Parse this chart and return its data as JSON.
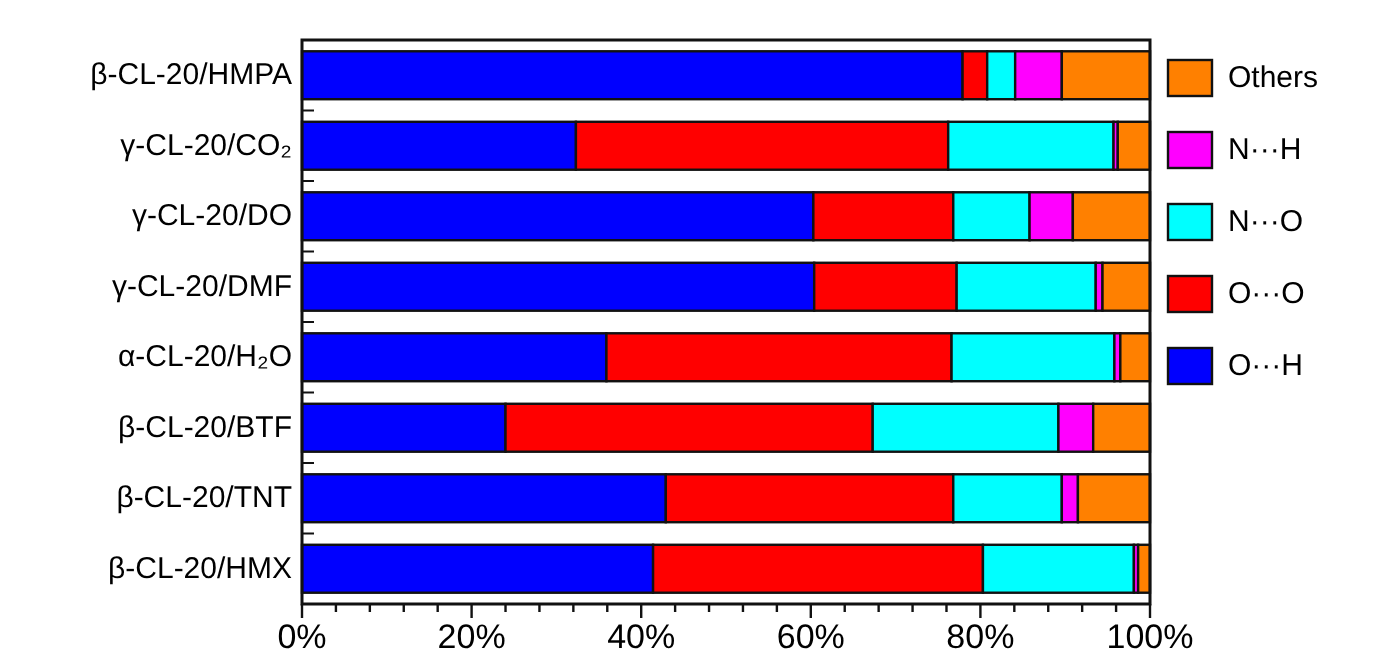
{
  "chart_data": {
    "type": "bar",
    "orientation": "horizontal",
    "stacked": true,
    "categories": [
      "β-CL-20/HMPA",
      "γ-CL-20/CO₂",
      "γ-CL-20/DO",
      "γ-CL-20/DMF",
      "α-CL-20/H₂O",
      "β-CL-20/BTF",
      "β-CL-20/TNT",
      "β-CL-20/HMX"
    ],
    "series": [
      {
        "name": "O···H",
        "color": "#0000ff",
        "values": [
          77.9,
          32.3,
          60.3,
          60.4,
          35.9,
          24.0,
          42.9,
          41.4
        ]
      },
      {
        "name": "O···O",
        "color": "#ff0000",
        "values": [
          2.9,
          43.9,
          16.5,
          16.8,
          40.7,
          43.3,
          33.9,
          38.9
        ]
      },
      {
        "name": "N···O",
        "color": "#00ffff",
        "values": [
          3.3,
          19.5,
          9.0,
          16.4,
          19.2,
          21.9,
          12.8,
          17.8
        ]
      },
      {
        "name": "N···H",
        "color": "#ff00ff",
        "values": [
          5.5,
          0.5,
          5.1,
          0.8,
          0.7,
          4.1,
          1.9,
          0.5
        ]
      },
      {
        "name": "Others",
        "color": "#ff8000",
        "values": [
          10.4,
          3.8,
          9.1,
          5.6,
          3.5,
          6.7,
          8.5,
          1.4
        ]
      }
    ],
    "xlim": [
      0,
      100
    ],
    "xticks": [
      {
        "value": 0,
        "label": "0%"
      },
      {
        "value": 4,
        "label": null
      },
      {
        "value": 8,
        "label": null
      },
      {
        "value": 12,
        "label": null
      },
      {
        "value": 16,
        "label": null
      },
      {
        "value": 20,
        "label": "20%"
      },
      {
        "value": 24,
        "label": null
      },
      {
        "value": 28,
        "label": null
      },
      {
        "value": 32,
        "label": null
      },
      {
        "value": 36,
        "label": null
      },
      {
        "value": 40,
        "label": "40%"
      },
      {
        "value": 44,
        "label": null
      },
      {
        "value": 48,
        "label": null
      },
      {
        "value": 52,
        "label": null
      },
      {
        "value": 56,
        "label": null
      },
      {
        "value": 60,
        "label": "60%"
      },
      {
        "value": 64,
        "label": null
      },
      {
        "value": 68,
        "label": null
      },
      {
        "value": 72,
        "label": null
      },
      {
        "value": 76,
        "label": null
      },
      {
        "value": 80,
        "label": "80%"
      },
      {
        "value": 84,
        "label": null
      },
      {
        "value": 88,
        "label": null
      },
      {
        "value": 92,
        "label": null
      },
      {
        "value": 96,
        "label": null
      },
      {
        "value": 100,
        "label": "100%"
      }
    ],
    "legend": "right"
  }
}
